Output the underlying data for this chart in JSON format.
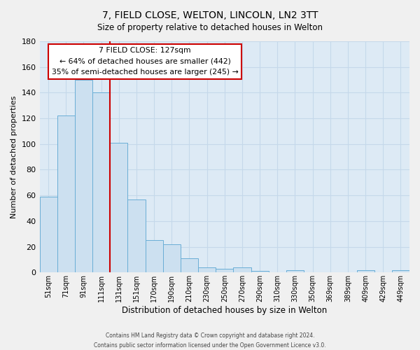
{
  "title": "7, FIELD CLOSE, WELTON, LINCOLN, LN2 3TT",
  "subtitle": "Size of property relative to detached houses in Welton",
  "xlabel": "Distribution of detached houses by size in Welton",
  "ylabel": "Number of detached properties",
  "bar_labels": [
    "51sqm",
    "71sqm",
    "91sqm",
    "111sqm",
    "131sqm",
    "151sqm",
    "170sqm",
    "190sqm",
    "210sqm",
    "230sqm",
    "250sqm",
    "270sqm",
    "290sqm",
    "310sqm",
    "330sqm",
    "350sqm",
    "369sqm",
    "389sqm",
    "409sqm",
    "429sqm",
    "449sqm"
  ],
  "bar_values": [
    59,
    122,
    150,
    140,
    101,
    57,
    25,
    22,
    11,
    4,
    3,
    4,
    1,
    0,
    2,
    0,
    0,
    0,
    2,
    0,
    2
  ],
  "bar_color": "#cce0f0",
  "bar_edge_color": "#6aaed6",
  "ylim": [
    0,
    180
  ],
  "yticks": [
    0,
    20,
    40,
    60,
    80,
    100,
    120,
    140,
    160,
    180
  ],
  "vline_index": 4,
  "vline_color": "#cc0000",
  "annotation_box_title": "7 FIELD CLOSE: 127sqm",
  "annotation_line1": "← 64% of detached houses are smaller (442)",
  "annotation_line2": "35% of semi-detached houses are larger (245) →",
  "annotation_box_edge_color": "#cc0000",
  "grid_color": "#c5d8ea",
  "background_color": "#ddeaf5",
  "fig_background_color": "#f0f0f0",
  "footer_line1": "Contains HM Land Registry data © Crown copyright and database right 2024.",
  "footer_line2": "Contains public sector information licensed under the Open Government Licence v3.0."
}
